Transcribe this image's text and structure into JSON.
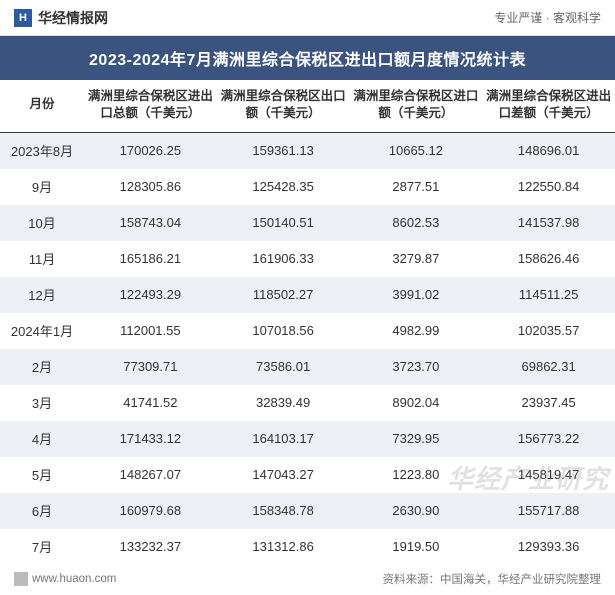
{
  "header": {
    "site_name": "华经情报网",
    "tagline": "专业严谨 · 客观科学"
  },
  "title": "2023-2024年7月满洲里综合保税区进出口额月度情况统计表",
  "table": {
    "columns": [
      "月份",
      "满洲里综合保税区进出口总额（千美元）",
      "满洲里综合保税区出口额（千美元）",
      "满洲里综合保税区进口额（千美元）",
      "满洲里综合保税区进出口差额（千美元）"
    ],
    "rows": [
      [
        "2023年8月",
        "170026.25",
        "159361.13",
        "10665.12",
        "148696.01"
      ],
      [
        "9月",
        "128305.86",
        "125428.35",
        "2877.51",
        "122550.84"
      ],
      [
        "10月",
        "158743.04",
        "150140.51",
        "8602.53",
        "141537.98"
      ],
      [
        "11月",
        "165186.21",
        "161906.33",
        "3279.87",
        "158626.46"
      ],
      [
        "12月",
        "122493.29",
        "118502.27",
        "3991.02",
        "114511.25"
      ],
      [
        "2024年1月",
        "112001.55",
        "107018.56",
        "4982.99",
        "102035.57"
      ],
      [
        "2月",
        "77309.71",
        "73586.01",
        "3723.70",
        "69862.31"
      ],
      [
        "3月",
        "41741.52",
        "32839.49",
        "8902.04",
        "23937.45"
      ],
      [
        "4月",
        "171433.12",
        "164103.17",
        "7329.95",
        "156773.22"
      ],
      [
        "5月",
        "148267.07",
        "147043.27",
        "1223.80",
        "145819.47"
      ],
      [
        "6月",
        "160979.68",
        "158348.78",
        "2630.90",
        "155717.88"
      ],
      [
        "7月",
        "133232.37",
        "131312.86",
        "1919.50",
        "129393.36"
      ]
    ]
  },
  "footer": {
    "left": "www.huaon.com",
    "right": "资料来源：中国海关，华经产业研究院整理"
  },
  "watermark": "华经产业研究",
  "colors": {
    "title_bg": "#3a5380",
    "title_fg": "#ffffff",
    "row_odd_bg": "#edf0f5",
    "row_even_bg": "#ffffff",
    "header_border": "#333333"
  }
}
